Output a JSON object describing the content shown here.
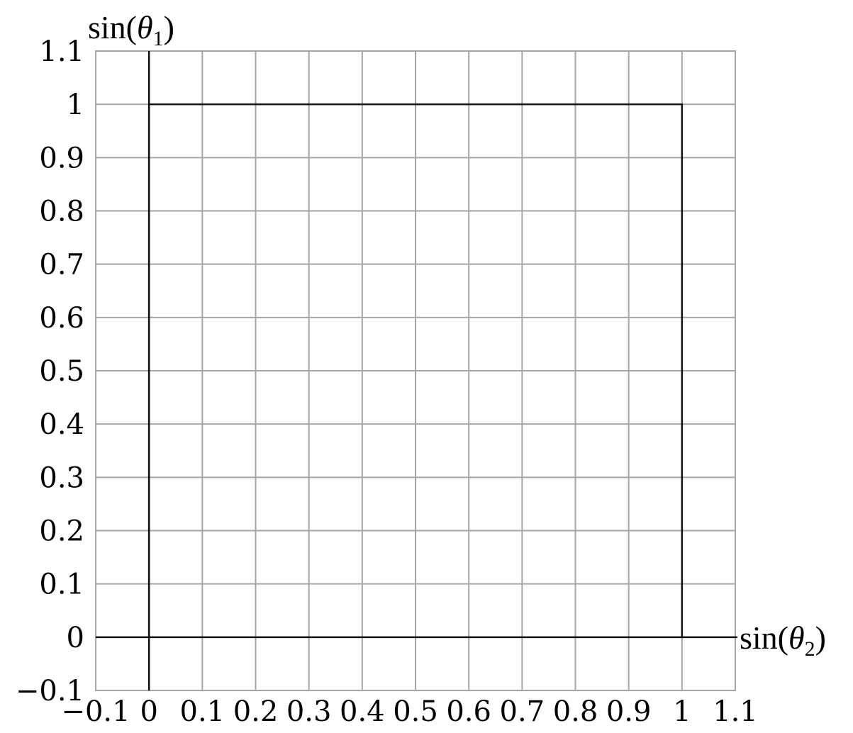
{
  "chart_data": {
    "type": "line",
    "title": "",
    "xlabel": {
      "prefix": "sin(",
      "symbol": "θ",
      "subscript": "2",
      "suffix": ")"
    },
    "ylabel": {
      "prefix": "sin(",
      "symbol": "θ",
      "subscript": "1",
      "suffix": ")"
    },
    "xlim": [
      -0.1,
      1.1
    ],
    "ylim": [
      -0.1,
      1.1
    ],
    "x_ticks": [
      -0.1,
      0,
      0.1,
      0.2,
      0.3,
      0.4,
      0.5,
      0.6,
      0.7,
      0.8,
      0.9,
      1,
      1.1
    ],
    "y_ticks": [
      -0.1,
      0,
      0.1,
      0.2,
      0.3,
      0.4,
      0.5,
      0.6,
      0.7,
      0.8,
      0.9,
      1,
      1.1
    ],
    "x_tick_labels": [
      "−0.1",
      "0",
      "0.1",
      "0.2",
      "0.3",
      "0.4",
      "0.5",
      "0.6",
      "0.7",
      "0.8",
      "0.9",
      "1",
      "1.1"
    ],
    "y_tick_labels": [
      "−0.1",
      "0",
      "0.1",
      "0.2",
      "0.3",
      "0.4",
      "0.5",
      "0.6",
      "0.7",
      "0.8",
      "0.9",
      "1",
      "1.1"
    ],
    "grid": true,
    "axes_lines": {
      "x_axis_at_y": 0,
      "y_axis_at_x": 0
    },
    "series": [
      {
        "x": [
          0,
          0,
          1,
          1
        ],
        "y": [
          0,
          1,
          1,
          0
        ]
      }
    ],
    "colors": {
      "grid": "#a6a6a6",
      "axis": "#111111",
      "boundary": "#111111",
      "text": "#000000"
    }
  }
}
